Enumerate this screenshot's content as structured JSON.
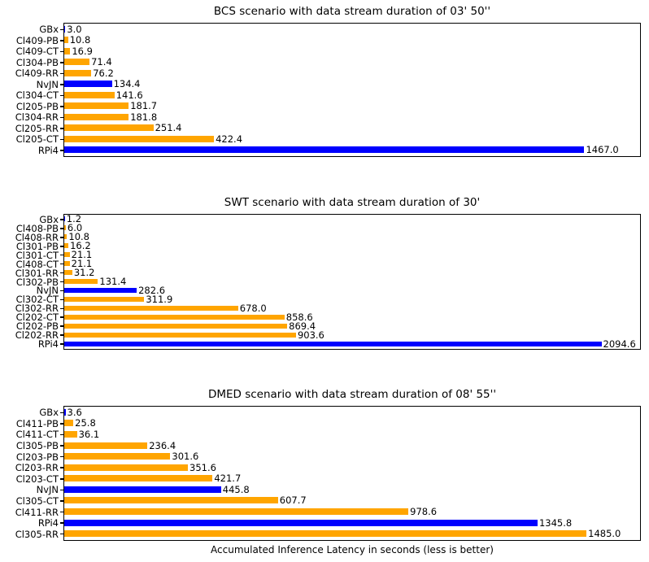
{
  "figure": {
    "xlabel": "Accumulated Inference Latency in seconds (less is better)",
    "background": "#FFFFFF",
    "palette": {
      "blue": "#0000FF",
      "orange": "#FFA500",
      "text": "#000000",
      "spine": "#000000"
    }
  },
  "chart_data": [
    {
      "type": "bar",
      "orientation": "horizontal",
      "title": "BCS scenario with data stream duration of 03' 50''",
      "xlabel": "",
      "ylabel": "",
      "grid": false,
      "legend": false,
      "xlim": [
        0,
        1622
      ],
      "categories": [
        "GBx",
        "Cl409-PB",
        "Cl409-CT",
        "Cl304-PB",
        "Cl409-RR",
        "NvJN",
        "Cl304-CT",
        "Cl205-PB",
        "Cl304-RR",
        "Cl205-RR",
        "Cl205-CT",
        "RPi4"
      ],
      "values": [
        3.0,
        10.8,
        16.9,
        71.4,
        76.2,
        134.4,
        141.6,
        181.7,
        181.8,
        251.4,
        422.4,
        1467.0
      ],
      "colors": [
        "blue",
        "orange",
        "orange",
        "orange",
        "orange",
        "blue",
        "orange",
        "orange",
        "orange",
        "orange",
        "orange",
        "blue"
      ]
    },
    {
      "type": "bar",
      "orientation": "horizontal",
      "title": "SWT scenario with data stream duration of 30'",
      "xlabel": "",
      "ylabel": "",
      "grid": false,
      "legend": false,
      "xlim": [
        0,
        2242
      ],
      "categories": [
        "GBx",
        "Cl408-PB",
        "Cl408-RR",
        "Cl301-PB",
        "Cl301-CT",
        "Cl408-CT",
        "Cl301-RR",
        "Cl302-PB",
        "NvJN",
        "Cl302-CT",
        "Cl302-RR",
        "Cl202-CT",
        "Cl202-PB",
        "Cl202-RR",
        "RPi4"
      ],
      "values": [
        1.2,
        6.0,
        10.8,
        16.2,
        21.1,
        21.1,
        31.2,
        131.4,
        282.6,
        311.9,
        678.0,
        858.6,
        869.4,
        903.6,
        2094.6
      ],
      "colors": [
        "blue",
        "orange",
        "orange",
        "orange",
        "orange",
        "orange",
        "orange",
        "orange",
        "blue",
        "orange",
        "orange",
        "orange",
        "orange",
        "orange",
        "blue"
      ]
    },
    {
      "type": "bar",
      "orientation": "horizontal",
      "title": "DMED scenario with data stream duration of 08' 55''",
      "xlabel": "",
      "ylabel": "",
      "grid": false,
      "legend": false,
      "xlim": [
        0,
        1635
      ],
      "categories": [
        "GBx",
        "Cl411-PB",
        "Cl411-CT",
        "Cl305-PB",
        "Cl203-PB",
        "Cl203-RR",
        "Cl203-CT",
        "NvJN",
        "Cl305-CT",
        "Cl411-RR",
        "RPi4",
        "Cl305-RR"
      ],
      "values": [
        3.6,
        25.8,
        36.1,
        236.4,
        301.6,
        351.6,
        421.7,
        445.8,
        607.7,
        978.6,
        1345.8,
        1485.0
      ],
      "colors": [
        "blue",
        "orange",
        "orange",
        "orange",
        "orange",
        "orange",
        "orange",
        "blue",
        "orange",
        "orange",
        "blue",
        "orange"
      ]
    }
  ]
}
